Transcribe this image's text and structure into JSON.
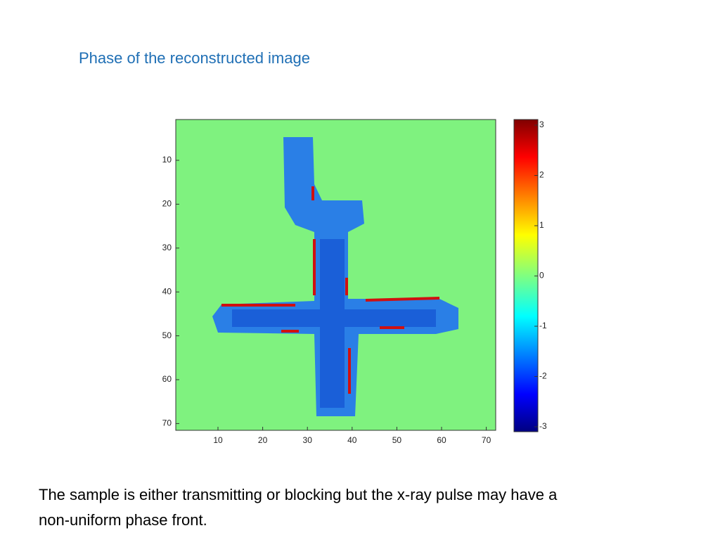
{
  "title": "Phase of the reconstructed image",
  "figure": {
    "x_ticks": [
      10,
      20,
      30,
      40,
      50,
      60,
      70
    ],
    "y_ticks": [
      10,
      20,
      30,
      40,
      50,
      60,
      70
    ],
    "colorbar_ticks": [
      3,
      2,
      1,
      0,
      -1,
      -2,
      -3
    ]
  },
  "caption": [
    "The sample is either transmitting or blocking but the x-ray pulse may have a",
    "non-uniform phase front."
  ]
}
